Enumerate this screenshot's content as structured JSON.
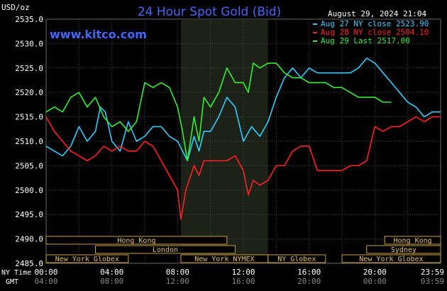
{
  "header": {
    "title": "24 Hour Spot Gold (Bid)",
    "unit": "USD/oz",
    "timestamp": "August 29, 2024 21:04",
    "site": "www.kitco.com"
  },
  "legend": [
    {
      "label": "Aug 27 NY close 2523.90",
      "color": "#33ccff"
    },
    {
      "label": "Aug 28 NY close 2504.10",
      "color": "#ff2222"
    },
    {
      "label": "Aug 29 Last 2517.00",
      "color": "#33ee33"
    }
  ],
  "axis": {
    "y_ticks": [
      "2535.0",
      "2530.0",
      "2525.0",
      "2520.0",
      "2515.0",
      "2510.0",
      "2505.0",
      "2500.0",
      "2495.0",
      "2490.0",
      "2485.0"
    ],
    "x_ticks_ny": [
      "00:00",
      "04:00",
      "08:00",
      "12:00",
      "16:00",
      "20:00",
      "23:59"
    ],
    "x_ticks_gmt": [
      "04:00",
      "08:00",
      "12:00",
      "16:00",
      "20:00",
      "00:00",
      "03:59"
    ],
    "ny_time_label": "NY Time",
    "gmt_label": "GMT"
  },
  "sessions": [
    {
      "label": "Hong Kong",
      "row": 0,
      "start": 0,
      "end": 11
    },
    {
      "label": "Hong Kong",
      "row": 0,
      "start": 20.6,
      "end": 24
    },
    {
      "label": "London",
      "row": 1,
      "start": 3,
      "end": 11.5
    },
    {
      "label": "Sydney",
      "row": 1,
      "start": 19.5,
      "end": 24
    },
    {
      "label": "New York Globex",
      "row": 2,
      "start": 0,
      "end": 5
    },
    {
      "label": "New York NYMEX",
      "row": 2,
      "start": 8.2,
      "end": 13.5
    },
    {
      "label": "NY Globex",
      "row": 2,
      "start": 13.5,
      "end": 17
    },
    {
      "label": "New York Globex",
      "row": 2,
      "start": 18,
      "end": 24
    }
  ],
  "chart_data": {
    "type": "line",
    "title": "24 Hour Spot Gold (Bid)",
    "ylabel": "USD/oz",
    "xlabel": "NY Time",
    "ylim": [
      2485,
      2535
    ],
    "xlim": [
      0,
      24
    ],
    "shaded_range": [
      8.2,
      13.5
    ],
    "grid": true,
    "legend_position": "top-right",
    "series": [
      {
        "name": "Aug 27 NY close 2523.90",
        "color": "#33ccff",
        "x": [
          0,
          0.5,
          1,
          1.5,
          2,
          2.5,
          3,
          3.3,
          3.6,
          4,
          4.5,
          5,
          5.5,
          6,
          6.5,
          7,
          7.5,
          8,
          8.3,
          8.6,
          9,
          9.3,
          9.6,
          10,
          10.5,
          11,
          11.5,
          12,
          12.5,
          13,
          13.5,
          14,
          14.5,
          15,
          15.5,
          16,
          16.5,
          17,
          17.5,
          18,
          18.5,
          19,
          19.5,
          20,
          20.5,
          21,
          21.5,
          22,
          22.5,
          23,
          23.5,
          24
        ],
        "y": [
          2509,
          2508,
          2507,
          2509,
          2513,
          2510,
          2512,
          2517,
          2516,
          2510,
          2508,
          2514,
          2510,
          2511,
          2513,
          2513,
          2511,
          2510,
          2508,
          2506,
          2511,
          2508,
          2512,
          2512,
          2515,
          2519,
          2517,
          2510,
          2513,
          2511,
          2514,
          2519,
          2523,
          2525,
          2523,
          2525,
          2524,
          2524,
          2524,
          2524,
          2524,
          2525,
          2527,
          2526,
          2524,
          2522,
          2520,
          2518,
          2517,
          2515,
          2516,
          2516
        ]
      },
      {
        "name": "Aug 28 NY close 2504.10",
        "color": "#ff2222",
        "x": [
          0,
          0.5,
          1,
          1.5,
          2,
          2.5,
          3,
          3.5,
          4,
          4.5,
          5,
          5.5,
          6,
          6.5,
          7,
          7.5,
          8,
          8.2,
          8.5,
          9,
          9.3,
          9.6,
          10,
          10.5,
          11,
          11.5,
          12,
          12.3,
          12.6,
          13,
          13.5,
          14,
          14.5,
          15,
          15.5,
          16,
          16.5,
          17,
          17.5,
          18,
          18.5,
          19,
          19.5,
          20,
          20.5,
          21,
          21.5,
          22,
          22.5,
          23,
          23.5,
          24
        ],
        "y": [
          2515,
          2512,
          2510,
          2508,
          2507,
          2506,
          2507,
          2509,
          2508,
          2509,
          2508,
          2508,
          2510,
          2509,
          2506,
          2503,
          2500,
          2494,
          2500,
          2505,
          2503,
          2506,
          2506,
          2506,
          2506,
          2507,
          2504,
          2499,
          2502,
          2501,
          2502,
          2505,
          2505,
          2508,
          2509,
          2509,
          2504,
          2504,
          2504,
          2504,
          2505,
          2505,
          2506,
          2513,
          2512,
          2513,
          2513,
          2514,
          2515,
          2514,
          2515,
          2515
        ]
      },
      {
        "name": "Aug 29 Last 2517.00",
        "color": "#33ee33",
        "x": [
          0,
          0.5,
          1,
          1.5,
          2,
          2.5,
          3,
          3.5,
          4,
          4.5,
          5,
          5.5,
          6,
          6.5,
          7,
          7.5,
          8,
          8.3,
          8.6,
          9,
          9.3,
          9.6,
          10,
          10.5,
          11,
          11.5,
          12,
          12.3,
          12.6,
          13,
          13.5,
          14,
          14.5,
          15,
          15.5,
          16,
          16.5,
          17,
          17.5,
          18,
          18.5,
          19,
          19.5,
          20,
          20.5,
          21
        ],
        "y": [
          2516,
          2517,
          2516,
          2519,
          2520,
          2517,
          2519,
          2515,
          2513,
          2514,
          2512,
          2514,
          2522,
          2521,
          2522,
          2521,
          2517,
          2512,
          2506,
          2515,
          2510,
          2519,
          2517,
          2520,
          2525,
          2522,
          2522,
          2520,
          2526,
          2525,
          2526,
          2526,
          2524,
          2523,
          2523,
          2522,
          2522,
          2522,
          2521,
          2521,
          2520,
          2519,
          2519,
          2519,
          2518,
          2518
        ]
      }
    ]
  }
}
